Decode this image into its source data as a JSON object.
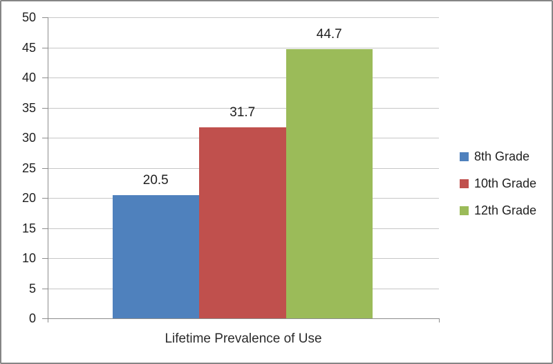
{
  "chart_data": {
    "type": "bar",
    "title": "",
    "xlabel": "Lifetime Prevalence of Use",
    "ylabel": "",
    "ylim": [
      0,
      50
    ],
    "yticks": [
      0,
      5,
      10,
      15,
      20,
      25,
      30,
      35,
      40,
      45,
      50
    ],
    "grid": true,
    "legend_position": "right",
    "categories": [
      "Lifetime Prevalence of Use"
    ],
    "series": [
      {
        "name": "8th Grade",
        "value": 20.5,
        "value_label": "20.5",
        "color": "#4f81bd"
      },
      {
        "name": "10th Grade",
        "value": 31.7,
        "value_label": "31.7",
        "color": "#c0504d"
      },
      {
        "name": "12th Grade",
        "value": 44.7,
        "value_label": "44.7",
        "color": "#9bbb59"
      }
    ]
  },
  "colors": {
    "gridline": "#c6c6c6",
    "axis": "#8c8c8c",
    "text": "#1f1f1f",
    "frame_border": "#858585",
    "background": "#ffffff"
  }
}
